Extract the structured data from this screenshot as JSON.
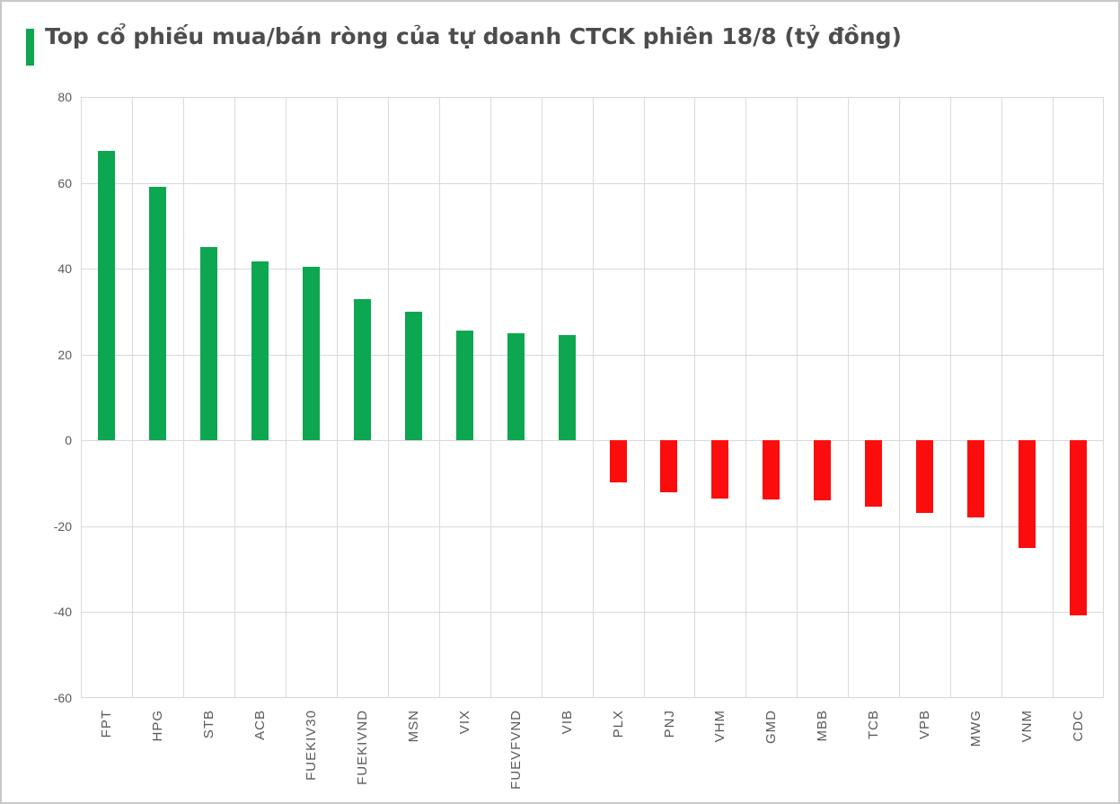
{
  "page": {
    "title": "Top cổ phiếu mua/bán ròng của tự doanh CTCK phiên 18/8 (tỷ đồng)"
  },
  "colors": {
    "positive": "#0ca750",
    "negative": "#fc0d0d",
    "gridline": "#d9d9d9",
    "axis_text": "#595959",
    "title_text": "#4d4d4d",
    "page_border": "#c8c8c8"
  },
  "chart_data": {
    "type": "bar",
    "title": "Top cổ phiếu mua/bán ròng của tự doanh CTCK phiên 18/8 (tỷ đồng)",
    "unit": "tỷ đồng",
    "categories": [
      "FPT",
      "HPG",
      "STB",
      "ACB",
      "FUEKIV30",
      "FUEKIVND",
      "MSN",
      "VIX",
      "FUEVFVND",
      "VIB",
      "PLX",
      "PNJ",
      "VHM",
      "GMD",
      "MBB",
      "TCB",
      "VPB",
      "MWG",
      "VNM",
      "CDC"
    ],
    "values": [
      67.4,
      59,
      45,
      41.8,
      40.5,
      33,
      30,
      25.5,
      25,
      24.6,
      -9.8,
      -12,
      -13.6,
      -13.8,
      -14,
      -15.5,
      -17,
      -18,
      -25,
      -40.7
    ],
    "ylim": [
      -60,
      80
    ],
    "yticks": [
      80,
      60,
      40,
      20,
      0,
      -20,
      -40,
      -60
    ],
    "grid": "horizontal-and-vertical",
    "legend": "none",
    "xlabel": "",
    "ylabel": ""
  }
}
